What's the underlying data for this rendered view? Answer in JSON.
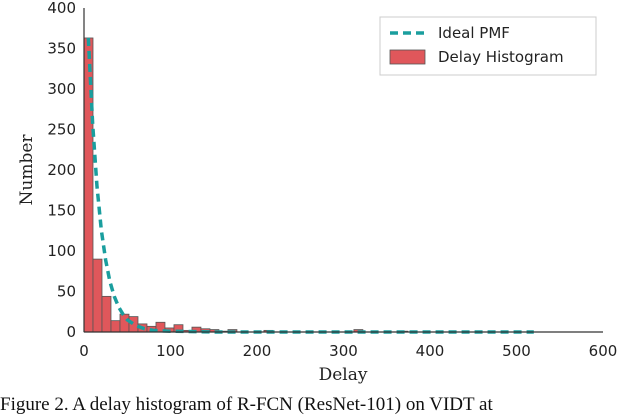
{
  "chart_data": {
    "type": "bar",
    "xlabel": "Delay",
    "ylabel": "Number",
    "xlim": [
      0,
      600
    ],
    "ylim": [
      0,
      400
    ],
    "xticks": [
      "0",
      "100",
      "200",
      "300",
      "400",
      "500",
      "600"
    ],
    "yticks": [
      "0",
      "50",
      "100",
      "150",
      "200",
      "250",
      "300",
      "350",
      "400"
    ],
    "grid": false,
    "legend_position": "top-right",
    "bin_width": 10.4,
    "series": [
      {
        "name": "Delay Histogram",
        "kind": "histogram",
        "color": "#e0575b",
        "bin_starts": [
          0,
          10.4,
          20.8,
          31.2,
          41.6,
          52,
          62.4,
          72.8,
          83.2,
          93.6,
          104,
          114.4,
          124.8,
          135.2,
          145.6,
          156,
          166.4,
          208,
          312,
          364
        ],
        "values": [
          363,
          90,
          44,
          14,
          22,
          19,
          10,
          7,
          12,
          5,
          9,
          2,
          6,
          4,
          3,
          1,
          3,
          2,
          3,
          1
        ]
      },
      {
        "name": "Ideal PMF",
        "kind": "line",
        "style": "dashed",
        "color": "#1a9e9e",
        "x": [
          5,
          10,
          15,
          20,
          25,
          30,
          35,
          40,
          45,
          50,
          60,
          70,
          80,
          100,
          150,
          200,
          300,
          400,
          520
        ],
        "y": [
          363,
          257,
          180,
          126,
          89,
          62,
          44,
          31,
          22,
          15,
          8,
          4,
          2,
          1,
          0,
          0,
          0,
          0,
          0
        ]
      }
    ]
  },
  "caption": "Figure 2. A delay histogram of R-FCN (ResNet-101) on VIDT at"
}
